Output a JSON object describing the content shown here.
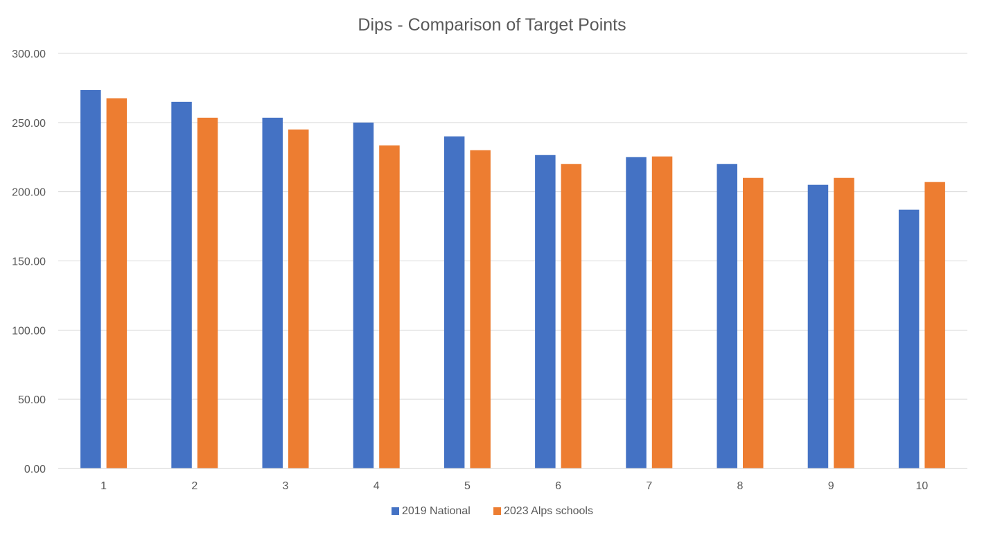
{
  "chart_data": {
    "type": "bar",
    "title": "Dips - Comparison of Target Points",
    "xlabel": "",
    "ylabel": "",
    "categories": [
      "1",
      "2",
      "3",
      "4",
      "5",
      "6",
      "7",
      "8",
      "9",
      "10"
    ],
    "series": [
      {
        "name": "2019 National",
        "color": "#4472C4",
        "values": [
          273.5,
          265.0,
          253.5,
          250.0,
          240.0,
          226.5,
          225.0,
          220.0,
          205.0,
          187.0
        ]
      },
      {
        "name": "2023 Alps schools",
        "color": "#ED7D31",
        "values": [
          267.5,
          253.5,
          245.0,
          233.5,
          230.0,
          220.0,
          225.5,
          210.0,
          210.0,
          207.0
        ]
      }
    ],
    "ylim": [
      0,
      300
    ],
    "y_ticks": [
      "0.00",
      "50.00",
      "100.00",
      "150.00",
      "200.00",
      "250.00",
      "300.00"
    ],
    "y_tick_values": [
      0,
      50,
      100,
      150,
      200,
      250,
      300
    ],
    "grid": true,
    "legend": "bottom"
  }
}
